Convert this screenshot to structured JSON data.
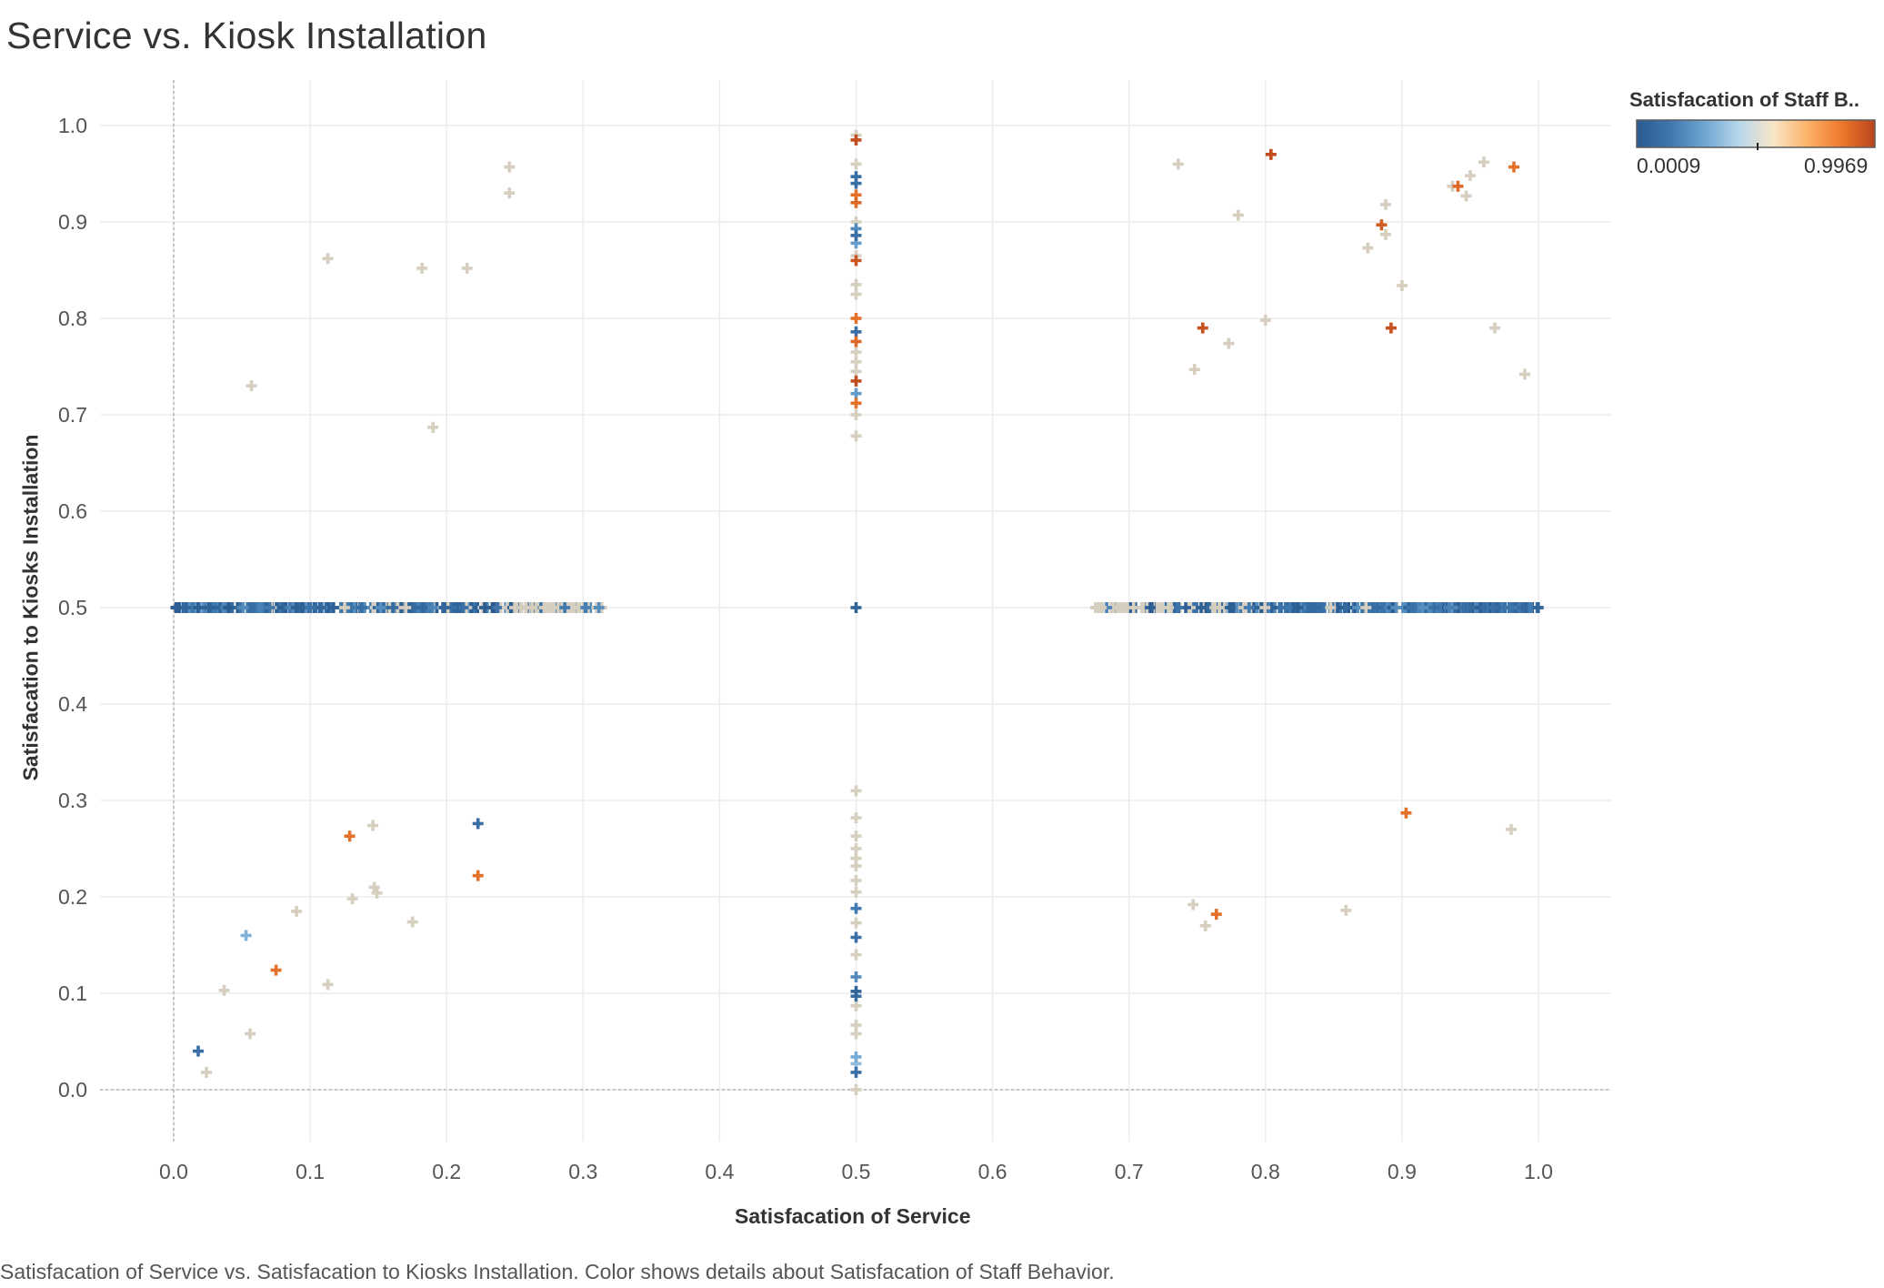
{
  "title": "Service vs. Kiosk Installation",
  "caption": "Satisfacation of Service vs. Satisfacation to Kiosks Installation.  Color shows details about Satisfacation of Staff Behavior.",
  "legend": {
    "title": "Satisfacation of Staff B..",
    "min_label": "0.0009",
    "max_label": "0.9969",
    "min": 0.0009,
    "max": 0.9969,
    "gradient_stops": [
      "#2a5a8f",
      "#3f78ad",
      "#6fa6d2",
      "#b8d6ec",
      "#f7e7c9",
      "#fdb36a",
      "#ee7a2b",
      "#b8441d"
    ]
  },
  "chart_data": {
    "type": "scatter",
    "title": "Service vs. Kiosk Installation",
    "xlabel": "Satisfacation of Service",
    "ylabel": "Satisfacation to Kiosks Installation",
    "xlim": [
      -0.05,
      1.05
    ],
    "ylim": [
      -0.05,
      1.05
    ],
    "x_ticks": [
      "0.0",
      "0.1",
      "0.2",
      "0.3",
      "0.4",
      "0.5",
      "0.6",
      "0.7",
      "0.8",
      "0.9",
      "1.0"
    ],
    "y_ticks": [
      "0.0",
      "0.1",
      "0.2",
      "0.3",
      "0.4",
      "0.5",
      "0.6",
      "0.7",
      "0.8",
      "0.9",
      "1.0"
    ],
    "grid": true,
    "marker": "plus",
    "color_by": "Satisfacation of Staff Behavior",
    "color_scale": [
      0.0009,
      0.9969
    ],
    "legend_position": "top-right",
    "points": [
      {
        "x": 0.057,
        "y": 0.73,
        "c": 0.5
      },
      {
        "x": 0.113,
        "y": 0.862,
        "c": 0.5
      },
      {
        "x": 0.182,
        "y": 0.852,
        "c": 0.5
      },
      {
        "x": 0.215,
        "y": 0.852,
        "c": 0.5
      },
      {
        "x": 0.246,
        "y": 0.957,
        "c": 0.5
      },
      {
        "x": 0.246,
        "y": 0.93,
        "c": 0.5
      },
      {
        "x": 0.19,
        "y": 0.687,
        "c": 0.5
      },
      {
        "x": 0.736,
        "y": 0.96,
        "c": 0.5
      },
      {
        "x": 0.804,
        "y": 0.97,
        "c": 0.97
      },
      {
        "x": 0.78,
        "y": 0.907,
        "c": 0.5
      },
      {
        "x": 0.754,
        "y": 0.79,
        "c": 0.96
      },
      {
        "x": 0.8,
        "y": 0.798,
        "c": 0.5
      },
      {
        "x": 0.773,
        "y": 0.774,
        "c": 0.5
      },
      {
        "x": 0.748,
        "y": 0.747,
        "c": 0.5
      },
      {
        "x": 0.885,
        "y": 0.897,
        "c": 0.93
      },
      {
        "x": 0.888,
        "y": 0.918,
        "c": 0.5
      },
      {
        "x": 0.888,
        "y": 0.887,
        "c": 0.5
      },
      {
        "x": 0.875,
        "y": 0.873,
        "c": 0.5
      },
      {
        "x": 0.9,
        "y": 0.834,
        "c": 0.5
      },
      {
        "x": 0.892,
        "y": 0.79,
        "c": 0.96
      },
      {
        "x": 0.937,
        "y": 0.937,
        "c": 0.5
      },
      {
        "x": 0.941,
        "y": 0.937,
        "c": 0.9
      },
      {
        "x": 0.95,
        "y": 0.948,
        "c": 0.5
      },
      {
        "x": 0.947,
        "y": 0.927,
        "c": 0.5
      },
      {
        "x": 0.96,
        "y": 0.962,
        "c": 0.5
      },
      {
        "x": 0.982,
        "y": 0.957,
        "c": 0.88
      },
      {
        "x": 0.968,
        "y": 0.79,
        "c": 0.5
      },
      {
        "x": 0.99,
        "y": 0.742,
        "c": 0.5
      },
      {
        "x": 0.018,
        "y": 0.04,
        "c": 0.1
      },
      {
        "x": 0.024,
        "y": 0.018,
        "c": 0.5
      },
      {
        "x": 0.037,
        "y": 0.103,
        "c": 0.5
      },
      {
        "x": 0.053,
        "y": 0.16,
        "c": 0.32
      },
      {
        "x": 0.056,
        "y": 0.058,
        "c": 0.5
      },
      {
        "x": 0.075,
        "y": 0.124,
        "c": 0.88
      },
      {
        "x": 0.09,
        "y": 0.185,
        "c": 0.5
      },
      {
        "x": 0.113,
        "y": 0.109,
        "c": 0.5
      },
      {
        "x": 0.129,
        "y": 0.263,
        "c": 0.88
      },
      {
        "x": 0.131,
        "y": 0.198,
        "c": 0.5
      },
      {
        "x": 0.146,
        "y": 0.274,
        "c": 0.5
      },
      {
        "x": 0.147,
        "y": 0.21,
        "c": 0.5
      },
      {
        "x": 0.149,
        "y": 0.204,
        "c": 0.5
      },
      {
        "x": 0.175,
        "y": 0.174,
        "c": 0.5
      },
      {
        "x": 0.223,
        "y": 0.276,
        "c": 0.1
      },
      {
        "x": 0.223,
        "y": 0.222,
        "c": 0.88
      },
      {
        "x": 0.747,
        "y": 0.192,
        "c": 0.5
      },
      {
        "x": 0.756,
        "y": 0.17,
        "c": 0.5
      },
      {
        "x": 0.764,
        "y": 0.182,
        "c": 0.88
      },
      {
        "x": 0.859,
        "y": 0.186,
        "c": 0.5
      },
      {
        "x": 0.903,
        "y": 0.287,
        "c": 0.88
      },
      {
        "x": 0.98,
        "y": 0.27,
        "c": 0.5
      },
      {
        "x": 0.5,
        "y": 0.5,
        "c": 0.05
      },
      {
        "x": 0.5,
        "y": 0.99,
        "c": 0.5
      },
      {
        "x": 0.5,
        "y": 0.985,
        "c": 0.97
      },
      {
        "x": 0.5,
        "y": 0.96,
        "c": 0.5
      },
      {
        "x": 0.5,
        "y": 0.947,
        "c": 0.1
      },
      {
        "x": 0.5,
        "y": 0.94,
        "c": 0.1
      },
      {
        "x": 0.5,
        "y": 0.928,
        "c": 0.88
      },
      {
        "x": 0.5,
        "y": 0.92,
        "c": 0.9
      },
      {
        "x": 0.5,
        "y": 0.9,
        "c": 0.5
      },
      {
        "x": 0.5,
        "y": 0.893,
        "c": 0.2
      },
      {
        "x": 0.5,
        "y": 0.886,
        "c": 0.1
      },
      {
        "x": 0.5,
        "y": 0.878,
        "c": 0.25
      },
      {
        "x": 0.5,
        "y": 0.865,
        "c": 0.5
      },
      {
        "x": 0.5,
        "y": 0.86,
        "c": 0.95
      },
      {
        "x": 0.5,
        "y": 0.835,
        "c": 0.5
      },
      {
        "x": 0.5,
        "y": 0.825,
        "c": 0.5
      },
      {
        "x": 0.5,
        "y": 0.8,
        "c": 0.88
      },
      {
        "x": 0.5,
        "y": 0.786,
        "c": 0.1
      },
      {
        "x": 0.5,
        "y": 0.776,
        "c": 0.9
      },
      {
        "x": 0.5,
        "y": 0.765,
        "c": 0.5
      },
      {
        "x": 0.5,
        "y": 0.755,
        "c": 0.5
      },
      {
        "x": 0.5,
        "y": 0.745,
        "c": 0.5
      },
      {
        "x": 0.5,
        "y": 0.735,
        "c": 0.97
      },
      {
        "x": 0.5,
        "y": 0.722,
        "c": 0.25
      },
      {
        "x": 0.5,
        "y": 0.712,
        "c": 0.88
      },
      {
        "x": 0.5,
        "y": 0.7,
        "c": 0.5
      },
      {
        "x": 0.5,
        "y": 0.678,
        "c": 0.5
      },
      {
        "x": 0.5,
        "y": 0.31,
        "c": 0.5
      },
      {
        "x": 0.5,
        "y": 0.282,
        "c": 0.5
      },
      {
        "x": 0.5,
        "y": 0.263,
        "c": 0.5
      },
      {
        "x": 0.5,
        "y": 0.25,
        "c": 0.5
      },
      {
        "x": 0.5,
        "y": 0.24,
        "c": 0.5
      },
      {
        "x": 0.5,
        "y": 0.232,
        "c": 0.5
      },
      {
        "x": 0.5,
        "y": 0.217,
        "c": 0.5
      },
      {
        "x": 0.5,
        "y": 0.205,
        "c": 0.5
      },
      {
        "x": 0.5,
        "y": 0.188,
        "c": 0.15
      },
      {
        "x": 0.5,
        "y": 0.173,
        "c": 0.5
      },
      {
        "x": 0.5,
        "y": 0.158,
        "c": 0.1
      },
      {
        "x": 0.5,
        "y": 0.14,
        "c": 0.5
      },
      {
        "x": 0.5,
        "y": 0.117,
        "c": 0.2
      },
      {
        "x": 0.5,
        "y": 0.102,
        "c": 0.05
      },
      {
        "x": 0.5,
        "y": 0.097,
        "c": 0.1
      },
      {
        "x": 0.5,
        "y": 0.087,
        "c": 0.5
      },
      {
        "x": 0.5,
        "y": 0.067,
        "c": 0.5
      },
      {
        "x": 0.5,
        "y": 0.058,
        "c": 0.5
      },
      {
        "x": 0.5,
        "y": 0.034,
        "c": 0.3
      },
      {
        "x": 0.5,
        "y": 0.027,
        "c": 0.35
      },
      {
        "x": 0.5,
        "y": 0.018,
        "c": 0.1
      },
      {
        "x": 0.5,
        "y": 0.0,
        "c": 0.5
      }
    ],
    "clusters": [
      {
        "y": 0.5,
        "x_range": [
          0.0,
          0.315
        ],
        "c_range": [
          0.0009,
          0.5
        ],
        "count": 420,
        "note": "dense horizontal band"
      },
      {
        "y": 0.5,
        "x_range": [
          0.675,
          1.0
        ],
        "c_range": [
          0.0009,
          0.5
        ],
        "count": 420,
        "note": "dense horizontal band"
      }
    ]
  }
}
